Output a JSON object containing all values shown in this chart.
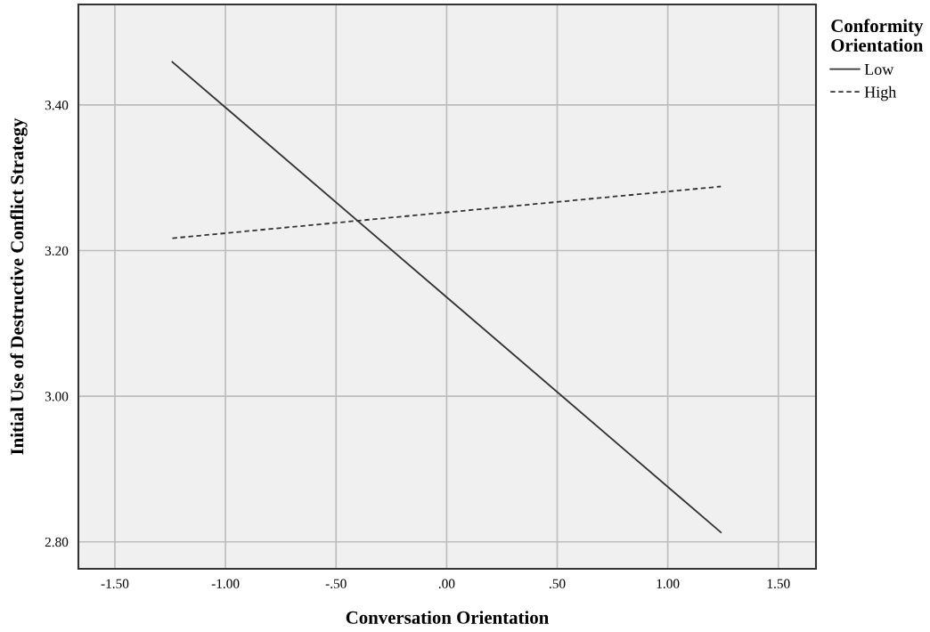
{
  "chart_data": {
    "type": "line",
    "xlabel": "Conversation Orientation",
    "ylabel": "Initial Use of Destructive Conflict Strategy",
    "legend_title": "Conformity\nOrientation",
    "legend": "top right",
    "x": [
      -1.24,
      1.24
    ],
    "series": [
      {
        "name": "Low",
        "color": "#333333",
        "line_style": "solid",
        "values": [
          3.459,
          2.813
        ]
      },
      {
        "name": "High",
        "color": "#333333",
        "line_style": "dashed",
        "values": [
          3.217,
          3.288
        ]
      }
    ],
    "xlim": [
      -1.665,
      1.67
    ],
    "ylim": [
      2.763,
      3.538
    ],
    "xticks": [
      {
        "value": -1.5,
        "label": "-1.50"
      },
      {
        "value": -1.0,
        "label": "-1.00"
      },
      {
        "value": -0.5,
        "label": "-.50"
      },
      {
        "value": 0,
        "label": ".00"
      },
      {
        "value": 0.5,
        "label": ".50"
      },
      {
        "value": 1.0,
        "label": "1.00"
      },
      {
        "value": 1.5,
        "label": "1.50"
      }
    ],
    "yticks": [
      {
        "value": 2.8,
        "label": "2.80"
      },
      {
        "value": 3.0,
        "label": "3.00"
      },
      {
        "value": 3.2,
        "label": "3.20"
      },
      {
        "value": 3.4,
        "label": "3.40"
      }
    ],
    "grid": true
  }
}
